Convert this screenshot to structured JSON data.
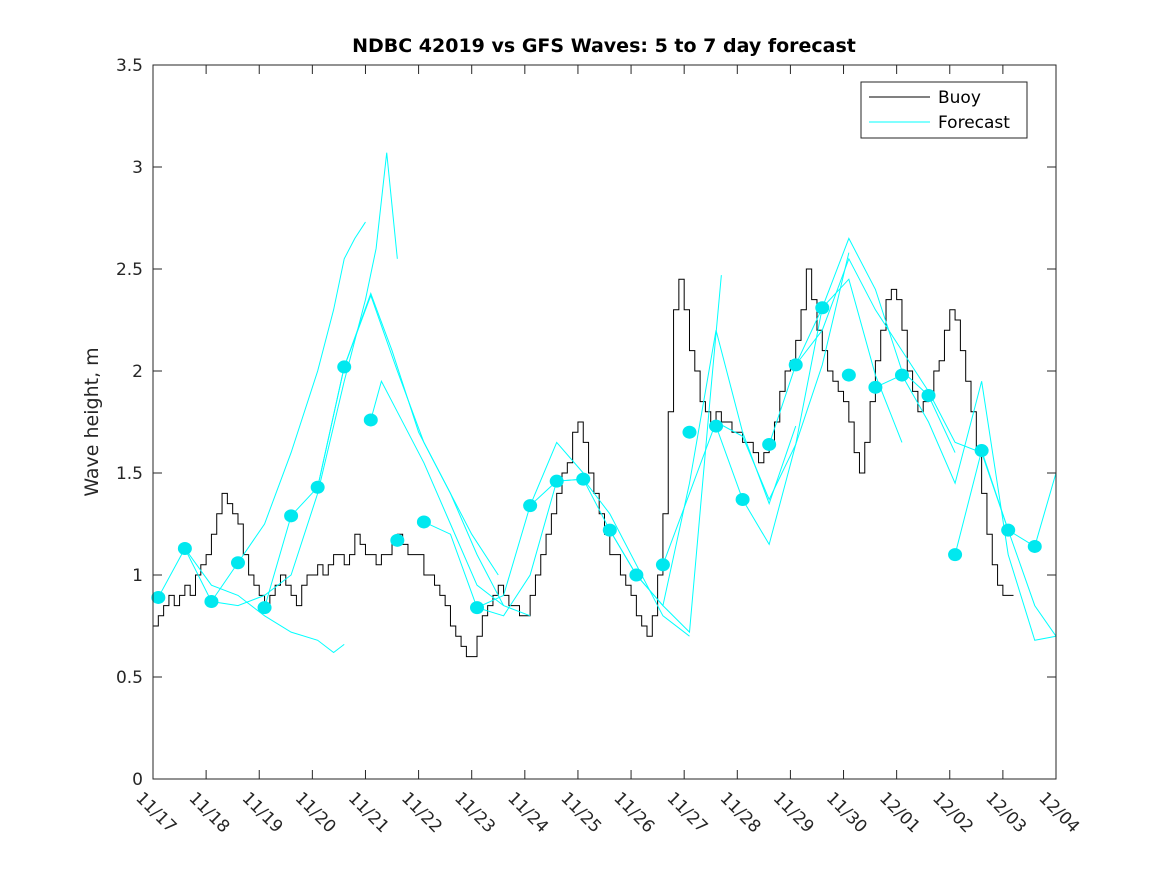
{
  "chart_data": {
    "type": "line",
    "title": "NDBC 42019 vs GFS Waves: 5 to 7 day forecast",
    "xlabel": "",
    "ylabel": "Wave height, m",
    "xlim_days": [
      0,
      17
    ],
    "ylim": [
      0,
      3.5
    ],
    "x_tick_labels": [
      "11/17",
      "11/18",
      "11/19",
      "11/20",
      "11/21",
      "11/22",
      "11/23",
      "11/24",
      "11/25",
      "11/26",
      "11/27",
      "11/28",
      "11/29",
      "11/30",
      "12/01",
      "12/02",
      "12/03",
      "12/04"
    ],
    "y_ticks": [
      0,
      0.5,
      1,
      1.5,
      2,
      2.5,
      3,
      3.5
    ],
    "y_tick_labels": [
      "0",
      "0.5",
      "1",
      "1.5",
      "2",
      "2.5",
      "3",
      "3.5"
    ],
    "grid": false,
    "legend": {
      "position": "top-right",
      "entries": [
        {
          "label": "Buoy",
          "color": "#000000"
        },
        {
          "label": "Forecast",
          "color": "#00e5ee"
        }
      ]
    },
    "colors": {
      "buoy": "#000000",
      "forecast": "#00ffff",
      "forecast_marker": "#00e8ef",
      "axis": "#262626"
    },
    "series": [
      {
        "name": "Buoy",
        "x_days": [
          0,
          0.1,
          0.2,
          0.3,
          0.4,
          0.5,
          0.6,
          0.7,
          0.8,
          0.9,
          1.0,
          1.1,
          1.2,
          1.3,
          1.4,
          1.5,
          1.6,
          1.7,
          1.8,
          1.9,
          2.0,
          2.1,
          2.2,
          2.3,
          2.4,
          2.5,
          2.6,
          2.7,
          2.8,
          2.9,
          3.0,
          3.1,
          3.2,
          3.3,
          3.4,
          3.5,
          3.6,
          3.7,
          3.8,
          3.9,
          4.0,
          4.1,
          4.2,
          4.3,
          4.4,
          4.5,
          4.6,
          4.7,
          4.8,
          4.9,
          5.0,
          5.1,
          5.2,
          5.3,
          5.4,
          5.5,
          5.6,
          5.7,
          5.8,
          5.9,
          6.0,
          6.1,
          6.2,
          6.3,
          6.4,
          6.5,
          6.6,
          6.7,
          6.8,
          6.9,
          7.0,
          7.1,
          7.2,
          7.3,
          7.4,
          7.5,
          7.6,
          7.7,
          7.8,
          7.9,
          8.0,
          8.1,
          8.2,
          8.3,
          8.4,
          8.5,
          8.6,
          8.7,
          8.8,
          8.9,
          9.0,
          9.1,
          9.2,
          9.3,
          9.4,
          9.5,
          9.6,
          9.7,
          9.8,
          9.9,
          10.0,
          10.1,
          10.2,
          10.3,
          10.4,
          10.5,
          10.6,
          10.7,
          10.8,
          10.9,
          11.0,
          11.1,
          11.2,
          11.3,
          11.4,
          11.5,
          11.6,
          11.7,
          11.8,
          11.9,
          12.0,
          12.1,
          12.2,
          12.3,
          12.4,
          12.5,
          12.6,
          12.7,
          12.8,
          12.9,
          13.0,
          13.1,
          13.2,
          13.3,
          13.4,
          13.5,
          13.6,
          13.7,
          13.8,
          13.9,
          14.0,
          14.1,
          14.2,
          14.3,
          14.4,
          14.5,
          14.6,
          14.7,
          14.8,
          14.9,
          15.0,
          15.1,
          15.2,
          15.3,
          15.4,
          15.5,
          15.6,
          15.7,
          15.8,
          15.9,
          16.0,
          16.1,
          16.2,
          16.3
        ],
        "values": [
          0.75,
          0.8,
          0.85,
          0.9,
          0.85,
          0.9,
          0.95,
          0.9,
          1.0,
          1.05,
          1.1,
          1.2,
          1.3,
          1.4,
          1.35,
          1.3,
          1.25,
          1.1,
          1.0,
          0.95,
          0.9,
          0.85,
          0.9,
          0.95,
          1.0,
          0.95,
          0.9,
          0.85,
          0.95,
          1.0,
          1.0,
          1.05,
          1.0,
          1.05,
          1.1,
          1.1,
          1.05,
          1.1,
          1.2,
          1.15,
          1.1,
          1.1,
          1.05,
          1.1,
          1.1,
          1.15,
          1.2,
          1.15,
          1.1,
          1.1,
          1.1,
          1.0,
          1.0,
          0.95,
          0.9,
          0.85,
          0.75,
          0.7,
          0.65,
          0.6,
          0.6,
          0.7,
          0.8,
          0.85,
          0.9,
          0.95,
          0.9,
          0.85,
          0.85,
          0.8,
          0.8,
          0.9,
          1.0,
          1.1,
          1.2,
          1.3,
          1.4,
          1.5,
          1.55,
          1.7,
          1.75,
          1.65,
          1.5,
          1.4,
          1.3,
          1.2,
          1.1,
          1.1,
          1.0,
          0.95,
          0.9,
          0.8,
          0.75,
          0.7,
          0.8,
          1.0,
          1.3,
          1.8,
          2.3,
          2.45,
          2.3,
          2.1,
          2.0,
          1.85,
          1.8,
          1.75,
          1.8,
          1.75,
          1.75,
          1.7,
          1.7,
          1.65,
          1.65,
          1.6,
          1.55,
          1.6,
          1.65,
          1.75,
          1.9,
          2.0,
          2.05,
          2.15,
          2.3,
          2.5,
          2.35,
          2.2,
          2.1,
          2.0,
          1.95,
          1.9,
          1.85,
          1.75,
          1.6,
          1.5,
          1.65,
          1.85,
          2.05,
          2.2,
          2.35,
          2.4,
          2.35,
          2.2,
          2.0,
          1.9,
          1.8,
          1.85,
          1.9,
          2.0,
          2.05,
          2.2,
          2.3,
          2.25,
          2.1,
          1.95,
          1.8,
          1.6,
          1.4,
          1.2,
          1.05,
          0.95,
          0.9,
          0.9
        ]
      },
      {
        "name": "Forecast",
        "runs": [
          {
            "x_days": [
              0.1,
              0.6,
              1.1,
              1.6,
              2.1,
              2.6,
              3.1,
              3.4,
              3.6
            ],
            "values": [
              0.89,
              1.13,
              0.95,
              0.9,
              0.8,
              0.72,
              0.68,
              0.62,
              0.66
            ]
          },
          {
            "x_days": [
              0.6,
              1.1,
              1.6,
              2.1,
              2.6,
              3.1,
              3.6,
              4.0,
              4.2,
              4.4,
              4.6
            ],
            "values": [
              1.13,
              0.87,
              0.85,
              0.9,
              1.0,
              1.4,
              1.95,
              2.35,
              2.6,
              3.07,
              2.55
            ]
          },
          {
            "x_days": [
              1.1,
              1.6,
              2.1,
              2.6,
              3.1,
              3.4,
              3.6,
              3.8,
              4.0
            ],
            "values": [
              0.87,
              1.06,
              1.25,
              1.6,
              2.0,
              2.3,
              2.55,
              2.65,
              2.73
            ]
          },
          {
            "x_days": [
              2.1,
              2.6,
              3.1,
              3.6,
              4.1,
              4.5,
              5.0,
              5.5,
              6.0,
              6.5
            ],
            "values": [
              0.84,
              1.29,
              1.43,
              2.02,
              2.38,
              2.1,
              1.7,
              1.45,
              1.2,
              1.0
            ]
          },
          {
            "x_days": [
              3.1,
              3.6,
              4.1,
              4.6,
              5.1,
              5.6,
              6.1,
              6.6
            ],
            "values": [
              1.43,
              2.02,
              2.37,
              2.0,
              1.65,
              1.4,
              1.1,
              0.85
            ]
          },
          {
            "x_days": [
              4.1,
              4.3,
              4.6,
              5.1,
              5.6,
              6.1,
              6.6,
              7.1
            ],
            "values": [
              1.76,
              1.95,
              1.8,
              1.55,
              1.25,
              0.95,
              0.85,
              0.8
            ]
          },
          {
            "x_days": [
              5.1,
              5.6,
              6.1,
              6.6,
              7.1,
              7.6,
              8.1
            ],
            "values": [
              1.26,
              1.2,
              0.84,
              0.9,
              1.34,
              1.65,
              1.5
            ]
          },
          {
            "x_days": [
              6.1,
              6.6,
              7.1,
              7.6,
              8.1,
              8.6,
              9.1,
              9.6,
              10.1
            ],
            "values": [
              0.84,
              0.8,
              1.0,
              1.46,
              1.47,
              1.3,
              1.05,
              0.8,
              0.7
            ]
          },
          {
            "x_days": [
              7.1,
              7.6,
              8.1,
              8.6,
              9.1,
              9.6,
              10.1,
              10.5,
              10.7
            ],
            "values": [
              1.34,
              1.46,
              1.47,
              1.22,
              1.0,
              0.85,
              0.72,
              1.9,
              2.47
            ]
          },
          {
            "x_days": [
              8.6,
              9.1,
              9.6,
              10.1,
              10.6,
              11.1,
              11.6,
              12.1
            ],
            "values": [
              1.22,
              1.0,
              0.85,
              1.45,
              2.2,
              1.7,
              1.35,
              1.73
            ]
          },
          {
            "x_days": [
              9.6,
              10.1,
              10.6,
              11.1,
              11.6,
              12.1,
              12.6,
              13.1
            ],
            "values": [
              1.05,
              1.4,
              1.75,
              1.68,
              1.37,
              1.64,
              2.03,
              2.58
            ]
          },
          {
            "x_days": [
              10.6,
              11.1,
              11.6,
              12.1,
              12.6,
              13.1,
              13.6,
              14.1
            ],
            "values": [
              1.73,
              1.37,
              1.15,
              1.64,
              2.31,
              2.45,
              1.98,
              1.65
            ]
          },
          {
            "x_days": [
              11.6,
              12.1,
              12.6,
              13.1,
              13.6,
              14.1,
              14.6,
              15.1
            ],
            "values": [
              1.64,
              2.03,
              2.31,
              2.65,
              2.4,
              2.0,
              1.88,
              1.6
            ]
          },
          {
            "x_days": [
              12.1,
              12.6,
              13.1,
              13.6,
              14.1,
              14.6,
              15.1,
              15.6,
              16.1,
              16.6,
              17.0
            ],
            "values": [
              2.03,
              2.2,
              2.55,
              2.3,
              2.1,
              1.9,
              1.65,
              1.6,
              1.22,
              0.85,
              0.7
            ]
          },
          {
            "x_days": [
              13.6,
              14.1,
              14.6,
              15.1,
              15.6,
              16.1,
              16.6,
              17.0
            ],
            "values": [
              1.92,
              1.98,
              1.75,
              1.45,
              1.95,
              1.1,
              0.68,
              0.7
            ]
          },
          {
            "x_days": [
              15.1,
              15.6,
              16.1,
              16.6,
              17.0
            ],
            "values": [
              1.1,
              1.61,
              1.22,
              1.14,
              1.5
            ]
          }
        ],
        "markers": {
          "x_days": [
            0.1,
            0.6,
            1.1,
            1.6,
            2.1,
            2.6,
            3.1,
            3.6,
            4.1,
            4.6,
            5.1,
            6.1,
            7.1,
            7.6,
            8.1,
            8.6,
            9.1,
            9.6,
            10.1,
            10.6,
            11.1,
            11.6,
            12.1,
            12.6,
            13.1,
            13.6,
            14.1,
            14.6,
            15.1,
            15.6,
            16.1,
            16.6
          ],
          "values": [
            0.89,
            1.13,
            0.87,
            1.06,
            0.84,
            1.29,
            1.43,
            2.02,
            1.76,
            1.17,
            1.26,
            0.84,
            1.34,
            1.46,
            1.47,
            1.22,
            1.0,
            1.05,
            1.7,
            1.73,
            1.37,
            1.64,
            2.03,
            2.31,
            1.98,
            1.92,
            1.98,
            1.88,
            1.1,
            1.61,
            1.22,
            1.14
          ]
        }
      }
    ]
  }
}
